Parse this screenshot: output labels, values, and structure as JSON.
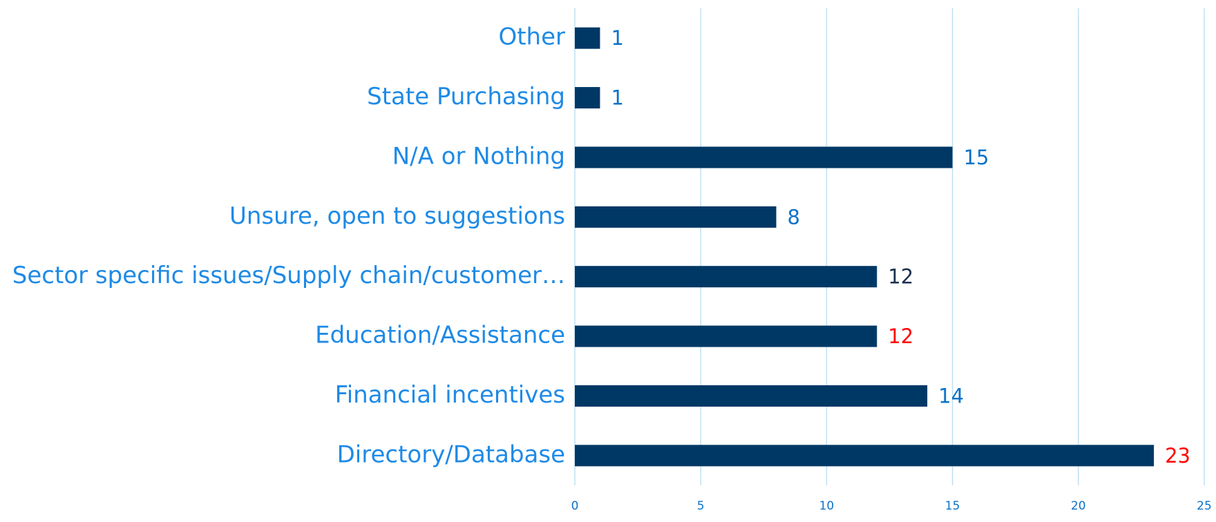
{
  "chart_data": {
    "type": "bar",
    "orientation": "horizontal",
    "categories": [
      "Other",
      "State Purchasing",
      "N/A or Nothing",
      "Unsure, open to suggestions",
      "Sector specific issues/Supply chain/customer…",
      "Education/Assistance",
      "Financial incentives",
      "Directory/Database"
    ],
    "values": [
      1,
      1,
      15,
      8,
      12,
      12,
      14,
      23
    ],
    "color": "#003865",
    "label_colors": [
      "#0b72c8",
      "#0b72c8",
      "#0b72c8",
      "#0b72c8",
      "#1b2f4f",
      "#ff0000",
      "#0b72c8",
      "#ff0000"
    ],
    "category_color": "#1e8ae6",
    "tick_color": "#0b72c8",
    "grid_color": "#bfe0f4",
    "xlim": [
      0,
      25
    ],
    "xticks": [
      0,
      5,
      10,
      15,
      20,
      25
    ],
    "grid": true
  }
}
